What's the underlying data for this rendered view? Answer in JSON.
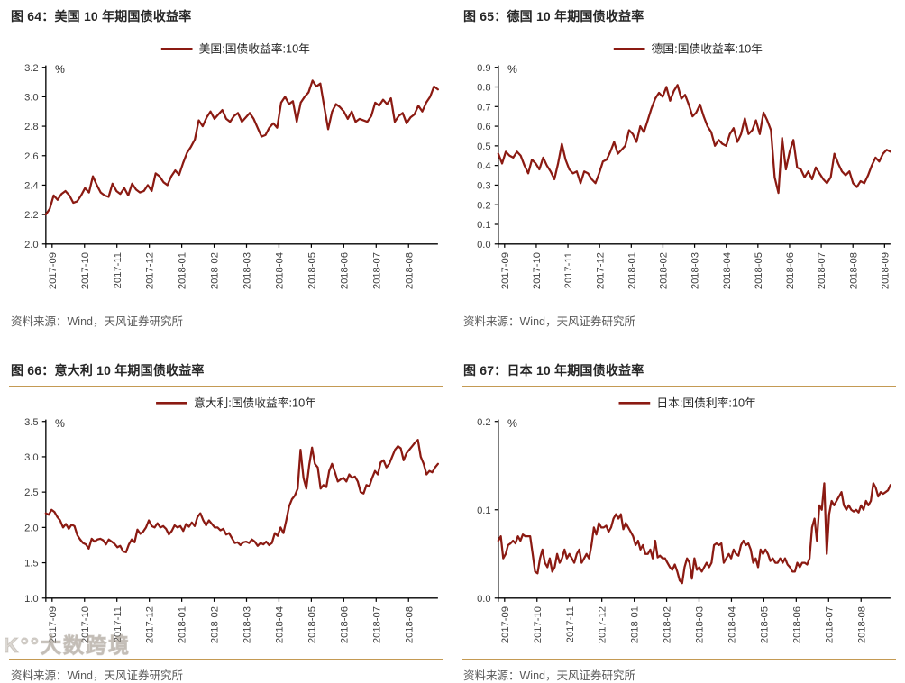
{
  "page": {
    "watermark": "K°°大数跨境"
  },
  "colors": {
    "line": "#8b1a12",
    "gold_rule": "#c49a53",
    "axis": "#000000",
    "tick_text": "#404040",
    "source_text": "#595959"
  },
  "chart_data": [
    {
      "type": "line",
      "title": "图 64：美国 10 年期国债收益率",
      "ylabel": "%",
      "xlabel": "",
      "ylim": [
        2.0,
        3.2
      ],
      "y_step": 0.2,
      "grid": false,
      "legend_position": "top-center",
      "source": "资料来源：Wind，天风证券研究所",
      "x_tick_labels": [
        "2017-09",
        "2017-10",
        "2017-11",
        "2017-12",
        "2018-01",
        "2018-02",
        "2018-03",
        "2018-04",
        "2018-05",
        "2018-06",
        "2018-07",
        "2018-08"
      ],
      "series": [
        {
          "name": "美国:国债收益率:10年",
          "values": [
            2.2,
            2.24,
            2.33,
            2.3,
            2.34,
            2.36,
            2.33,
            2.28,
            2.29,
            2.33,
            2.38,
            2.35,
            2.46,
            2.4,
            2.35,
            2.33,
            2.32,
            2.41,
            2.36,
            2.34,
            2.38,
            2.33,
            2.41,
            2.37,
            2.35,
            2.36,
            2.4,
            2.36,
            2.48,
            2.46,
            2.42,
            2.4,
            2.46,
            2.5,
            2.47,
            2.55,
            2.62,
            2.66,
            2.71,
            2.84,
            2.8,
            2.86,
            2.9,
            2.85,
            2.88,
            2.91,
            2.85,
            2.83,
            2.87,
            2.89,
            2.83,
            2.86,
            2.89,
            2.85,
            2.79,
            2.73,
            2.74,
            2.79,
            2.82,
            2.79,
            2.96,
            3.0,
            2.95,
            2.97,
            2.83,
            2.96,
            3.0,
            3.03,
            3.11,
            3.07,
            3.09,
            2.93,
            2.78,
            2.9,
            2.95,
            2.93,
            2.9,
            2.85,
            2.9,
            2.83,
            2.85,
            2.84,
            2.83,
            2.87,
            2.96,
            2.94,
            2.98,
            2.95,
            2.99,
            2.83,
            2.87,
            2.89,
            2.82,
            2.86,
            2.88,
            2.94,
            2.9,
            2.96,
            3.0,
            3.07,
            3.05
          ]
        }
      ]
    },
    {
      "type": "line",
      "title": "图 65：德国 10 年期国债收益率",
      "ylabel": "%",
      "xlabel": "",
      "ylim": [
        0.0,
        0.9
      ],
      "y_step": 0.1,
      "grid": false,
      "legend_position": "top-center",
      "source": "资料来源：Wind，天风证券研究所",
      "x_tick_labels": [
        "2017-09",
        "2017-10",
        "2017-11",
        "2017-12",
        "2018-01",
        "2018-02",
        "2018-03",
        "2018-04",
        "2018-05",
        "2018-06",
        "2018-07",
        "2018-08",
        "2018-09"
      ],
      "series": [
        {
          "name": "德国:国债收益率:10年",
          "values": [
            0.46,
            0.41,
            0.47,
            0.45,
            0.44,
            0.47,
            0.45,
            0.4,
            0.36,
            0.43,
            0.41,
            0.38,
            0.44,
            0.4,
            0.37,
            0.33,
            0.41,
            0.51,
            0.43,
            0.38,
            0.36,
            0.37,
            0.31,
            0.37,
            0.36,
            0.33,
            0.31,
            0.36,
            0.42,
            0.43,
            0.47,
            0.52,
            0.46,
            0.48,
            0.5,
            0.58,
            0.56,
            0.52,
            0.6,
            0.57,
            0.63,
            0.69,
            0.74,
            0.77,
            0.75,
            0.8,
            0.73,
            0.78,
            0.81,
            0.74,
            0.76,
            0.71,
            0.65,
            0.67,
            0.71,
            0.65,
            0.6,
            0.57,
            0.5,
            0.53,
            0.51,
            0.5,
            0.56,
            0.59,
            0.52,
            0.56,
            0.64,
            0.56,
            0.58,
            0.63,
            0.56,
            0.67,
            0.63,
            0.58,
            0.34,
            0.26,
            0.54,
            0.38,
            0.47,
            0.53,
            0.39,
            0.38,
            0.34,
            0.37,
            0.33,
            0.39,
            0.36,
            0.33,
            0.31,
            0.34,
            0.46,
            0.41,
            0.37,
            0.35,
            0.37,
            0.31,
            0.29,
            0.32,
            0.31,
            0.35,
            0.4,
            0.44,
            0.42,
            0.46,
            0.48,
            0.47
          ]
        }
      ]
    },
    {
      "type": "line",
      "title": "图 66：意大利 10 年期国债收益率",
      "ylabel": "%",
      "xlabel": "",
      "ylim": [
        1.0,
        3.5
      ],
      "y_step": 0.5,
      "grid": false,
      "legend_position": "top-center",
      "source": "资料来源：Wind，天风证券研究所",
      "x_tick_labels": [
        "2017-09",
        "2017-10",
        "2017-11",
        "2017-12",
        "2018-01",
        "2018-02",
        "2018-03",
        "2018-04",
        "2018-05",
        "2018-06",
        "2018-07",
        "2018-08"
      ],
      "series": [
        {
          "name": "意大利:国债收益率:10年",
          "values": [
            2.2,
            2.18,
            2.25,
            2.22,
            2.15,
            2.1,
            2.0,
            2.05,
            1.98,
            2.04,
            2.02,
            1.89,
            1.83,
            1.78,
            1.76,
            1.7,
            1.84,
            1.8,
            1.83,
            1.84,
            1.82,
            1.76,
            1.83,
            1.8,
            1.77,
            1.72,
            1.74,
            1.66,
            1.65,
            1.76,
            1.83,
            1.79,
            1.97,
            1.91,
            1.94,
            2.0,
            2.1,
            2.02,
            2.0,
            2.06,
            2.0,
            2.02,
            1.98,
            1.9,
            1.95,
            2.03,
            2.0,
            2.02,
            1.95,
            2.05,
            2.01,
            2.07,
            2.02,
            2.15,
            2.2,
            2.1,
            2.03,
            2.1,
            2.05,
            2.0,
            2.0,
            1.96,
            1.98,
            1.9,
            1.92,
            1.85,
            1.78,
            1.79,
            1.75,
            1.79,
            1.8,
            1.78,
            1.83,
            1.8,
            1.74,
            1.78,
            1.76,
            1.8,
            1.75,
            1.78,
            1.92,
            1.88,
            2.0,
            1.92,
            2.1,
            2.3,
            2.4,
            2.45,
            2.55,
            3.1,
            2.7,
            2.55,
            2.88,
            3.13,
            2.9,
            2.85,
            2.55,
            2.6,
            2.57,
            2.8,
            2.9,
            2.78,
            2.65,
            2.68,
            2.7,
            2.65,
            2.75,
            2.7,
            2.72,
            2.65,
            2.5,
            2.48,
            2.6,
            2.58,
            2.7,
            2.8,
            2.75,
            2.92,
            2.95,
            2.85,
            2.9,
            3.0,
            3.1,
            3.15,
            3.12,
            2.95,
            3.05,
            3.1,
            3.15,
            3.2,
            3.24,
            3.0,
            2.9,
            2.75,
            2.8,
            2.78,
            2.85,
            2.9
          ]
        }
      ]
    },
    {
      "type": "line",
      "title": "图 67：日本 10 年期国债收益率",
      "ylabel": "%",
      "xlabel": "",
      "ylim": [
        0.0,
        0.2
      ],
      "y_step": 0.1,
      "grid": false,
      "legend_position": "top-center",
      "source": "资料来源：Wind，天风证券研究所",
      "x_tick_labels": [
        "2017-09",
        "2017-10",
        "2017-11",
        "2017-12",
        "2018-01",
        "2018-02",
        "2018-03",
        "2018-04",
        "2018-05",
        "2018-06",
        "2018-07",
        "2018-08"
      ],
      "series": [
        {
          "name": "日本:国债利率:10年",
          "values": [
            0.065,
            0.07,
            0.045,
            0.05,
            0.06,
            0.062,
            0.065,
            0.062,
            0.07,
            0.065,
            0.072,
            0.07,
            0.07,
            0.07,
            0.05,
            0.03,
            0.028,
            0.045,
            0.055,
            0.04,
            0.035,
            0.045,
            0.03,
            0.035,
            0.05,
            0.04,
            0.045,
            0.055,
            0.045,
            0.05,
            0.045,
            0.04,
            0.05,
            0.055,
            0.04,
            0.045,
            0.05,
            0.045,
            0.06,
            0.08,
            0.072,
            0.085,
            0.08,
            0.08,
            0.082,
            0.075,
            0.08,
            0.09,
            0.095,
            0.09,
            0.095,
            0.078,
            0.085,
            0.08,
            0.075,
            0.07,
            0.06,
            0.065,
            0.055,
            0.06,
            0.05,
            0.05,
            0.055,
            0.045,
            0.065,
            0.046,
            0.048,
            0.045,
            0.045,
            0.04,
            0.035,
            0.032,
            0.038,
            0.03,
            0.02,
            0.017,
            0.035,
            0.045,
            0.04,
            0.022,
            0.045,
            0.032,
            0.035,
            0.03,
            0.035,
            0.04,
            0.035,
            0.04,
            0.06,
            0.062,
            0.06,
            0.062,
            0.04,
            0.045,
            0.05,
            0.045,
            0.055,
            0.05,
            0.048,
            0.06,
            0.065,
            0.06,
            0.062,
            0.055,
            0.04,
            0.045,
            0.035,
            0.055,
            0.05,
            0.055,
            0.05,
            0.042,
            0.045,
            0.04,
            0.04,
            0.045,
            0.04,
            0.045,
            0.038,
            0.035,
            0.03,
            0.03,
            0.04,
            0.035,
            0.04,
            0.04,
            0.038,
            0.045,
            0.08,
            0.09,
            0.065,
            0.105,
            0.1,
            0.13,
            0.05,
            0.095,
            0.11,
            0.105,
            0.11,
            0.115,
            0.12,
            0.105,
            0.1,
            0.105,
            0.1,
            0.098,
            0.1,
            0.097,
            0.105,
            0.1,
            0.11,
            0.105,
            0.11,
            0.13,
            0.125,
            0.115,
            0.12,
            0.118,
            0.12,
            0.122,
            0.128
          ]
        }
      ]
    }
  ]
}
